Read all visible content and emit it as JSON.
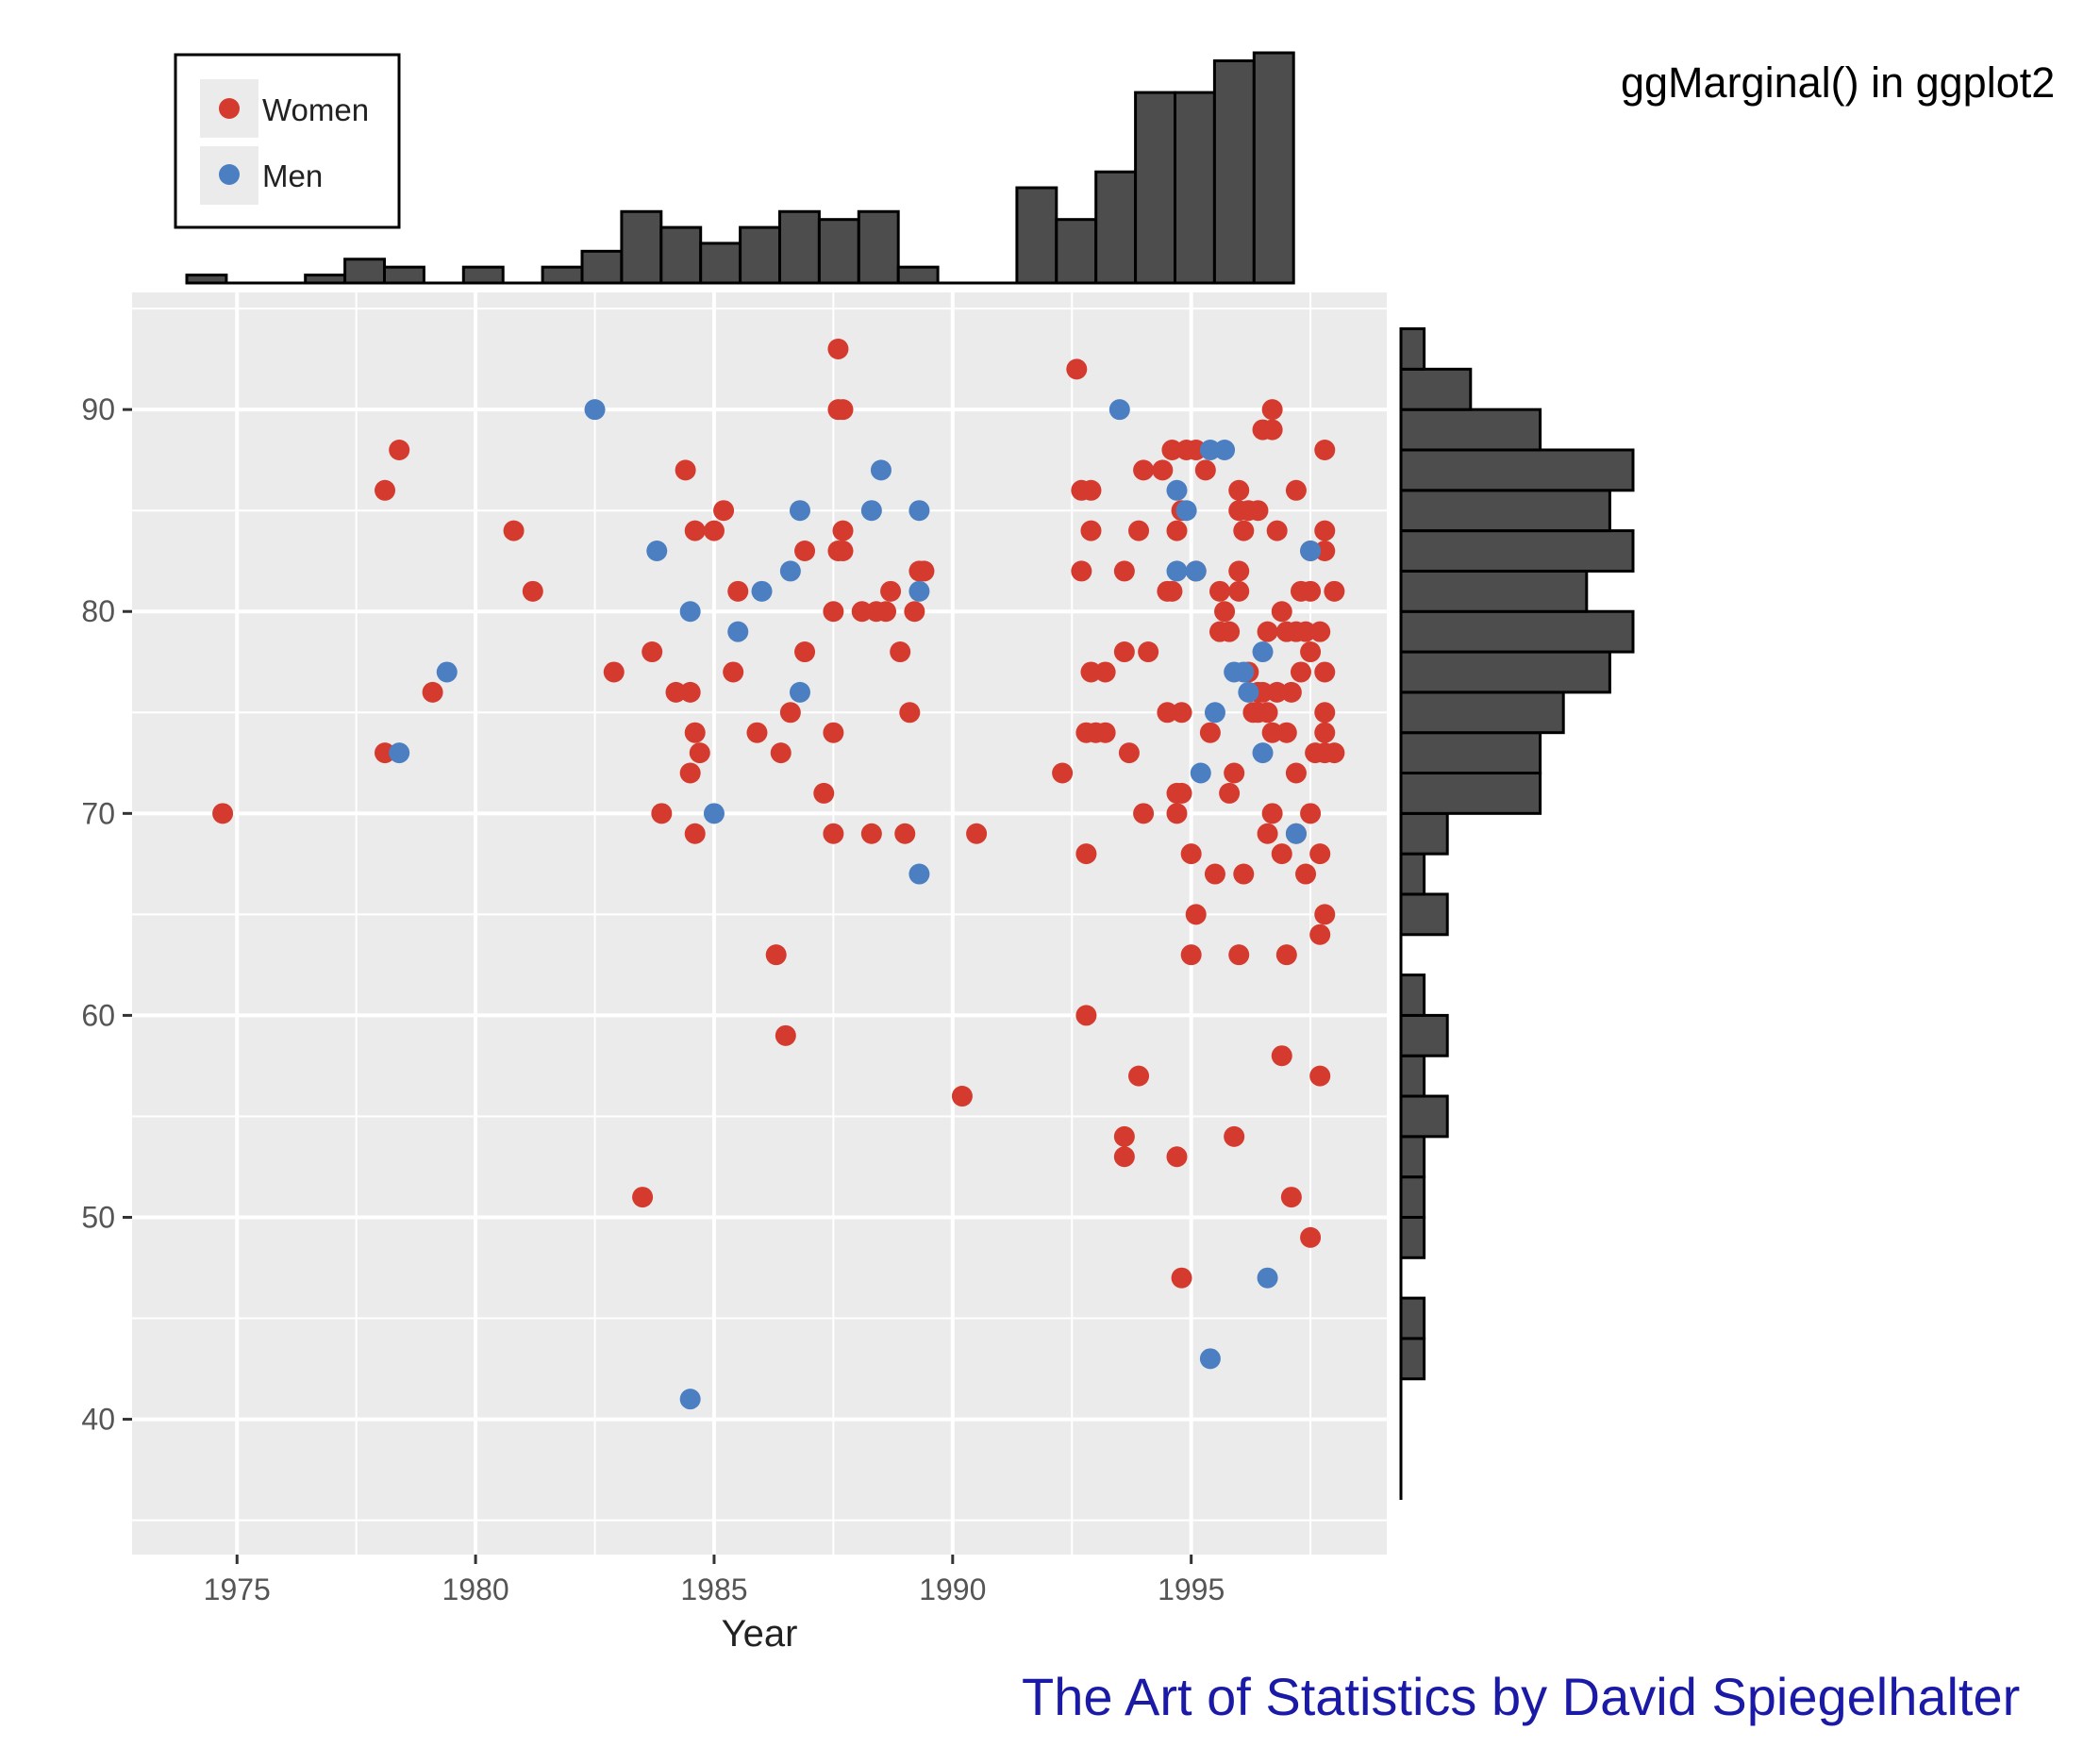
{
  "header": {
    "side_title": "ggMarginal() in ggplot2"
  },
  "footer": {
    "credit": "The Art of Statistics by David Spiegelhalter"
  },
  "colors": {
    "women": "#d43b2e",
    "men": "#4b7fc2",
    "panel_bg": "#ebebeb",
    "grid": "#ffffff",
    "histogram_fill": "#4d4d4d",
    "credit_text": "#1a1aa6"
  },
  "chart_data": {
    "type": "scatter",
    "title": "",
    "xlabel": "Year",
    "ylabel": "",
    "xlim": [
      1972.8,
      1999.1
    ],
    "ylim": [
      33.3,
      95.8
    ],
    "x_ticks": [
      "1975",
      "1980",
      "1985",
      "1990",
      "1995"
    ],
    "y_ticks": [
      "40",
      "50",
      "60",
      "70",
      "80",
      "90"
    ],
    "grid": true,
    "legend": {
      "position": "top-left",
      "entries": [
        {
          "label": "Women",
          "color": "#d43b2e"
        },
        {
          "label": "Men",
          "color": "#4b7fc2"
        }
      ]
    },
    "marginal": "histogram",
    "series": [
      {
        "name": "Women",
        "color": "#d43b2e",
        "points": [
          [
            1974.7,
            70
          ],
          [
            1978.1,
            86
          ],
          [
            1978.1,
            73
          ],
          [
            1978.4,
            88
          ],
          [
            1979.1,
            76
          ],
          [
            1980.8,
            84
          ],
          [
            1981.2,
            81
          ],
          [
            1982.9,
            77
          ],
          [
            1983.5,
            51
          ],
          [
            1983.7,
            78
          ],
          [
            1983.9,
            70
          ],
          [
            1984.2,
            76
          ],
          [
            1984.4,
            87
          ],
          [
            1984.5,
            76
          ],
          [
            1984.5,
            72
          ],
          [
            1984.6,
            84
          ],
          [
            1984.6,
            74
          ],
          [
            1984.6,
            69
          ],
          [
            1984.7,
            73
          ],
          [
            1985.0,
            84
          ],
          [
            1985.2,
            85
          ],
          [
            1985.4,
            77
          ],
          [
            1985.5,
            81
          ],
          [
            1985.9,
            74
          ],
          [
            1986.3,
            63
          ],
          [
            1986.4,
            73
          ],
          [
            1986.5,
            59
          ],
          [
            1986.6,
            75
          ],
          [
            1986.9,
            83
          ],
          [
            1986.9,
            78
          ],
          [
            1987.3,
            71
          ],
          [
            1987.5,
            80
          ],
          [
            1987.5,
            74
          ],
          [
            1987.5,
            69
          ],
          [
            1987.6,
            93
          ],
          [
            1987.6,
            90
          ],
          [
            1987.6,
            83
          ],
          [
            1987.7,
            90
          ],
          [
            1987.7,
            84
          ],
          [
            1987.7,
            83
          ],
          [
            1988.1,
            80
          ],
          [
            1988.3,
            69
          ],
          [
            1988.4,
            80
          ],
          [
            1988.6,
            80
          ],
          [
            1988.7,
            81
          ],
          [
            1988.9,
            78
          ],
          [
            1989.0,
            69
          ],
          [
            1989.1,
            75
          ],
          [
            1989.2,
            80
          ],
          [
            1989.3,
            82
          ],
          [
            1989.4,
            82
          ],
          [
            1990.2,
            56
          ],
          [
            1990.5,
            69
          ],
          [
            1992.3,
            72
          ],
          [
            1992.6,
            92
          ],
          [
            1992.7,
            86
          ],
          [
            1992.7,
            82
          ],
          [
            1992.8,
            74
          ],
          [
            1992.8,
            68
          ],
          [
            1992.8,
            60
          ],
          [
            1992.9,
            86
          ],
          [
            1992.9,
            84
          ],
          [
            1992.9,
            77
          ],
          [
            1993.0,
            74
          ],
          [
            1993.2,
            77
          ],
          [
            1993.2,
            74
          ],
          [
            1993.6,
            82
          ],
          [
            1993.6,
            78
          ],
          [
            1993.6,
            54
          ],
          [
            1993.6,
            53
          ],
          [
            1993.7,
            73
          ],
          [
            1993.9,
            57
          ],
          [
            1993.9,
            84
          ],
          [
            1994.0,
            87
          ],
          [
            1994.0,
            70
          ],
          [
            1994.1,
            78
          ],
          [
            1994.4,
            87
          ],
          [
            1994.5,
            81
          ],
          [
            1994.5,
            75
          ],
          [
            1994.6,
            88
          ],
          [
            1994.6,
            81
          ],
          [
            1994.7,
            84
          ],
          [
            1994.7,
            71
          ],
          [
            1994.7,
            70
          ],
          [
            1994.7,
            53
          ],
          [
            1994.8,
            85
          ],
          [
            1994.8,
            75
          ],
          [
            1994.8,
            71
          ],
          [
            1994.8,
            47
          ],
          [
            1994.9,
            88
          ],
          [
            1995.0,
            68
          ],
          [
            1995.0,
            63
          ],
          [
            1995.1,
            82
          ],
          [
            1995.1,
            65
          ],
          [
            1995.1,
            88
          ],
          [
            1995.3,
            87
          ],
          [
            1995.4,
            74
          ],
          [
            1995.5,
            67
          ],
          [
            1995.6,
            81
          ],
          [
            1995.6,
            79
          ],
          [
            1995.7,
            80
          ],
          [
            1995.8,
            71
          ],
          [
            1995.8,
            79
          ],
          [
            1995.9,
            72
          ],
          [
            1995.9,
            54
          ],
          [
            1996.0,
            85
          ],
          [
            1996.0,
            86
          ],
          [
            1996.0,
            82
          ],
          [
            1996.0,
            81
          ],
          [
            1996.0,
            63
          ],
          [
            1996.1,
            67
          ],
          [
            1996.1,
            84
          ],
          [
            1996.2,
            77
          ],
          [
            1996.2,
            85
          ],
          [
            1996.3,
            75
          ],
          [
            1996.4,
            76
          ],
          [
            1996.4,
            85
          ],
          [
            1996.4,
            75
          ],
          [
            1996.5,
            89
          ],
          [
            1996.5,
            76
          ],
          [
            1996.6,
            75
          ],
          [
            1996.6,
            69
          ],
          [
            1996.6,
            79
          ],
          [
            1996.7,
            90
          ],
          [
            1996.7,
            89
          ],
          [
            1996.7,
            74
          ],
          [
            1996.7,
            70
          ],
          [
            1996.8,
            76
          ],
          [
            1996.8,
            84
          ],
          [
            1996.9,
            80
          ],
          [
            1996.9,
            68
          ],
          [
            1996.9,
            58
          ],
          [
            1997.0,
            79
          ],
          [
            1997.0,
            74
          ],
          [
            1997.0,
            63
          ],
          [
            1997.1,
            76
          ],
          [
            1997.1,
            51
          ],
          [
            1997.2,
            86
          ],
          [
            1997.2,
            79
          ],
          [
            1997.2,
            72
          ],
          [
            1997.2,
            69
          ],
          [
            1997.3,
            81
          ],
          [
            1997.3,
            77
          ],
          [
            1997.4,
            79
          ],
          [
            1997.4,
            67
          ],
          [
            1997.5,
            83
          ],
          [
            1997.5,
            81
          ],
          [
            1997.5,
            78
          ],
          [
            1997.5,
            70
          ],
          [
            1997.5,
            49
          ],
          [
            1997.6,
            73
          ],
          [
            1997.7,
            79
          ],
          [
            1997.7,
            64
          ],
          [
            1997.7,
            57
          ],
          [
            1997.7,
            68
          ],
          [
            1997.8,
            77
          ],
          [
            1997.8,
            75
          ],
          [
            1997.8,
            74
          ],
          [
            1997.8,
            73
          ],
          [
            1997.8,
            65
          ],
          [
            1997.8,
            84
          ],
          [
            1997.8,
            83
          ],
          [
            1997.8,
            88
          ],
          [
            1998.0,
            73
          ],
          [
            1998.0,
            81
          ]
        ]
      },
      {
        "name": "Men",
        "color": "#4b7fc2",
        "points": [
          [
            1978.4,
            73
          ],
          [
            1979.4,
            77
          ],
          [
            1982.5,
            90
          ],
          [
            1983.8,
            83
          ],
          [
            1984.5,
            80
          ],
          [
            1984.5,
            41
          ],
          [
            1985.0,
            70
          ],
          [
            1985.5,
            79
          ],
          [
            1986.0,
            81
          ],
          [
            1986.6,
            82
          ],
          [
            1986.8,
            85
          ],
          [
            1986.8,
            76
          ],
          [
            1988.3,
            85
          ],
          [
            1988.5,
            87
          ],
          [
            1989.3,
            85
          ],
          [
            1989.3,
            81
          ],
          [
            1989.3,
            67
          ],
          [
            1993.5,
            90
          ],
          [
            1994.7,
            86
          ],
          [
            1994.7,
            82
          ],
          [
            1994.9,
            85
          ],
          [
            1995.1,
            82
          ],
          [
            1995.2,
            72
          ],
          [
            1995.4,
            43
          ],
          [
            1995.4,
            88
          ],
          [
            1995.5,
            75
          ],
          [
            1995.7,
            88
          ],
          [
            1995.9,
            77
          ],
          [
            1996.1,
            77
          ],
          [
            1996.2,
            76
          ],
          [
            1996.5,
            78
          ],
          [
            1996.5,
            73
          ],
          [
            1996.6,
            47
          ],
          [
            1997.2,
            69
          ],
          [
            1997.5,
            83
          ]
        ]
      }
    ],
    "top_histogram": {
      "bins": [
        "1974",
        "1975",
        "1976",
        "1977",
        "1978",
        "1979",
        "1980",
        "1981",
        "1982",
        "1983",
        "1984",
        "1985",
        "1986",
        "1987",
        "1988",
        "1989",
        "1990",
        "1991",
        "1992",
        "1993",
        "1994",
        "1995",
        "1996",
        "1997"
      ],
      "values": [
        1,
        0,
        0,
        1,
        3,
        2,
        0,
        2,
        0,
        2,
        4,
        9,
        7,
        5,
        7,
        9,
        8,
        9,
        2,
        0,
        0,
        12,
        8,
        14
      ]
    },
    "top_histogram_tail": [
      24,
      24,
      28,
      29
    ],
    "right_histogram": {
      "bins": [
        "42",
        "44",
        "46",
        "48",
        "50",
        "52",
        "54",
        "56",
        "58",
        "60",
        "62",
        "64",
        "66",
        "68",
        "70",
        "72",
        "74",
        "76",
        "78",
        "80",
        "82",
        "84",
        "86",
        "88",
        "90",
        "92"
      ],
      "values": [
        1,
        1,
        0,
        1,
        1,
        1,
        2,
        1,
        2,
        1,
        0,
        2,
        1,
        2,
        6,
        6,
        7,
        9,
        10,
        8,
        10,
        9,
        10,
        6,
        3,
        1
      ]
    }
  }
}
